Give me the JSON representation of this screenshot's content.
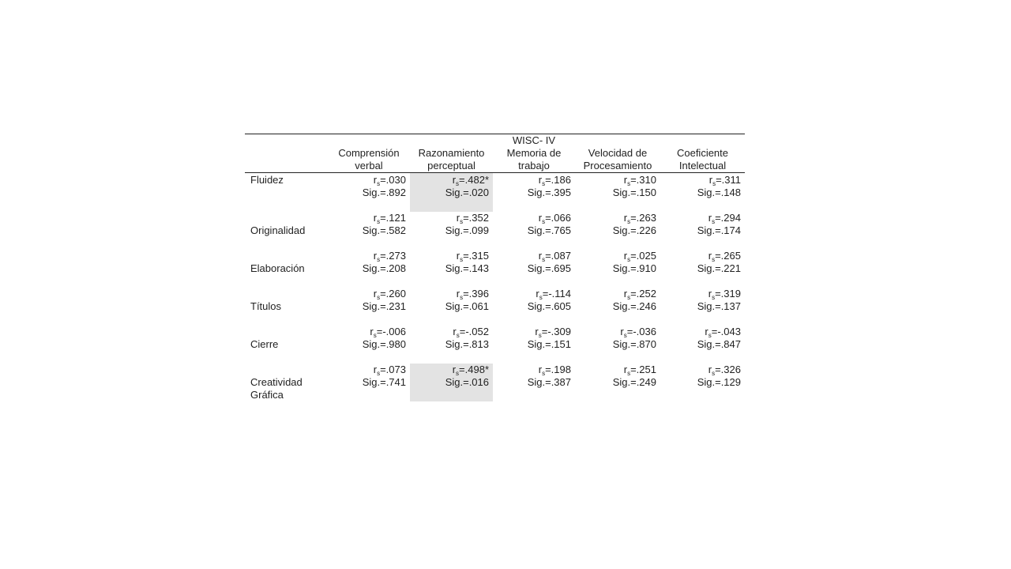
{
  "table": {
    "group_header": "WISC- IV",
    "columns": [
      {
        "line1": "Comprensión",
        "line2": "verbal"
      },
      {
        "line1": "Razonamiento",
        "line2": "perceptual"
      },
      {
        "line1": "Memoria de",
        "line2": "trabajo"
      },
      {
        "line1": "Velocidad de",
        "line2": "Procesamiento"
      },
      {
        "line1": "Coeficiente",
        "line2": "Intelectual"
      }
    ],
    "r_prefix": "r",
    "r_subscript": "s",
    "rows": [
      {
        "label": "Fluidez",
        "label2": "",
        "cells": [
          {
            "r": "=.030",
            "sig": "Sig.=.892"
          },
          {
            "r": "=.482*",
            "sig": "Sig.=.020"
          },
          {
            "r": "=.186",
            "sig": "Sig.=.395"
          },
          {
            "r": "=.310",
            "sig": "Sig.=.150"
          },
          {
            "r": "=.311",
            "sig": "Sig.=.148"
          }
        ]
      },
      {
        "label": "Originalidad",
        "label2": "",
        "cells": [
          {
            "r": "=.121",
            "sig": "Sig.=.582"
          },
          {
            "r": "=.352",
            "sig": "Sig.=.099"
          },
          {
            "r": "=.066",
            "sig": "Sig.=.765"
          },
          {
            "r": "=.263",
            "sig": "Sig.=.226"
          },
          {
            "r": "=.294",
            "sig": "Sig.=.174"
          }
        ]
      },
      {
        "label": "Elaboración",
        "label2": "",
        "cells": [
          {
            "r": "=.273",
            "sig": "Sig.=.208"
          },
          {
            "r": "=.315",
            "sig": "Sig.=.143"
          },
          {
            "r": "=.087",
            "sig": "Sig.=.695"
          },
          {
            "r": "=.025",
            "sig": "Sig.=.910"
          },
          {
            "r": "=.265",
            "sig": "Sig.=.221"
          }
        ]
      },
      {
        "label": "Títulos",
        "label2": "",
        "cells": [
          {
            "r": "=.260",
            "sig": "Sig.=.231"
          },
          {
            "r": "=.396",
            "sig": "Sig.=.061"
          },
          {
            "r": "=-.114",
            "sig": "Sig.=.605"
          },
          {
            "r": "=.252",
            "sig": "Sig.=.246"
          },
          {
            "r": "=.319",
            "sig": "Sig.=.137"
          }
        ]
      },
      {
        "label": "Cierre",
        "label2": "",
        "cells": [
          {
            "r": "=-.006",
            "sig": "Sig.=.980"
          },
          {
            "r": "=-.052",
            "sig": "Sig.=.813"
          },
          {
            "r": "=-.309",
            "sig": "Sig.=.151"
          },
          {
            "r": "=-.036",
            "sig": "Sig.=.870"
          },
          {
            "r": "=-.043",
            "sig": "Sig.=.847"
          }
        ]
      },
      {
        "label": "Creatividad",
        "label2": "Gráfica",
        "cells": [
          {
            "r": "=.073",
            "sig": "Sig.=.741"
          },
          {
            "r": "=.498*",
            "sig": "Sig.=.016"
          },
          {
            "r": "=.198",
            "sig": "Sig.=.387"
          },
          {
            "r": "=.251",
            "sig": "Sig.=.249"
          },
          {
            "r": "=.326",
            "sig": "Sig.=.129"
          }
        ]
      }
    ],
    "shade_color": "#e3e3e3"
  }
}
